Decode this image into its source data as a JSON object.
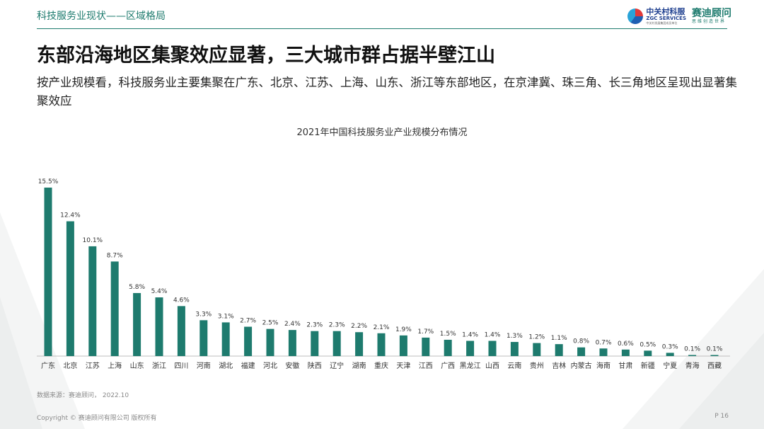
{
  "header": {
    "section": "科技服务业现状——区域格局",
    "logo_zgc_cn": "中关村科服",
    "logo_zgc_en": "ZGC SERVICES",
    "logo_zgc_sub": "中关村发展集团成员单位",
    "logo_ccid_cn": "赛迪顾问",
    "logo_ccid_sub": "思维创造世界"
  },
  "title": "东部沿海地区集聚效应显著，三大城市群占据半壁江山",
  "subtitle": "按产业规模看，科技服务业主要集聚在广东、北京、江苏、上海、山东、浙江等东部地区，在京津冀、珠三角、长三角地区呈现出显著集聚效应",
  "chart_data": {
    "type": "bar",
    "title": "2021年中国科技服务业产业规模分布情况",
    "xlabel": "",
    "ylabel": "",
    "categories": [
      "广东",
      "北京",
      "江苏",
      "上海",
      "山东",
      "浙江",
      "四川",
      "河南",
      "湖北",
      "福建",
      "河北",
      "安徽",
      "陕西",
      "辽宁",
      "湖南",
      "重庆",
      "天津",
      "江西",
      "广西",
      "黑龙江",
      "山西",
      "云南",
      "贵州",
      "吉林",
      "内蒙古",
      "海南",
      "甘肃",
      "新疆",
      "宁夏",
      "青海",
      "西藏"
    ],
    "values": [
      15.5,
      12.4,
      10.1,
      8.7,
      5.8,
      5.4,
      4.6,
      3.3,
      3.1,
      2.7,
      2.5,
      2.4,
      2.3,
      2.3,
      2.2,
      2.1,
      1.9,
      1.7,
      1.5,
      1.4,
      1.4,
      1.3,
      1.2,
      1.1,
      0.8,
      0.7,
      0.6,
      0.5,
      0.3,
      0.1,
      0.1
    ],
    "data_labels": [
      "15.5%",
      "12.4%",
      "10.1%",
      "8.7%",
      "5.8%",
      "5.4%",
      "4.6%",
      "3.3%",
      "3.1%",
      "2.7%",
      "2.5%",
      "2.4%",
      "2.3%",
      "2.3%",
      "2.2%",
      "2.1%",
      "1.9%",
      "1.7%",
      "1.5%",
      "1.4%",
      "1.4%",
      "1.3%",
      "1.2%",
      "1.1%",
      "0.8%",
      "0.7%",
      "0.6%",
      "0.5%",
      "0.3%",
      "0.1%",
      "0.1%"
    ],
    "unit": "%",
    "ylim": [
      0,
      16
    ],
    "grid": false,
    "bar_color": "#1e7b6e"
  },
  "source": "数据来源：赛迪顾问， 2022.10",
  "footer": {
    "copyright": "Copyright © 赛迪顾问有限公司 版权所有",
    "page": "P 16"
  },
  "colors": {
    "accent": "#1e7b6e",
    "axis": "#bfbfbf",
    "muted": "#8a8a8a"
  }
}
